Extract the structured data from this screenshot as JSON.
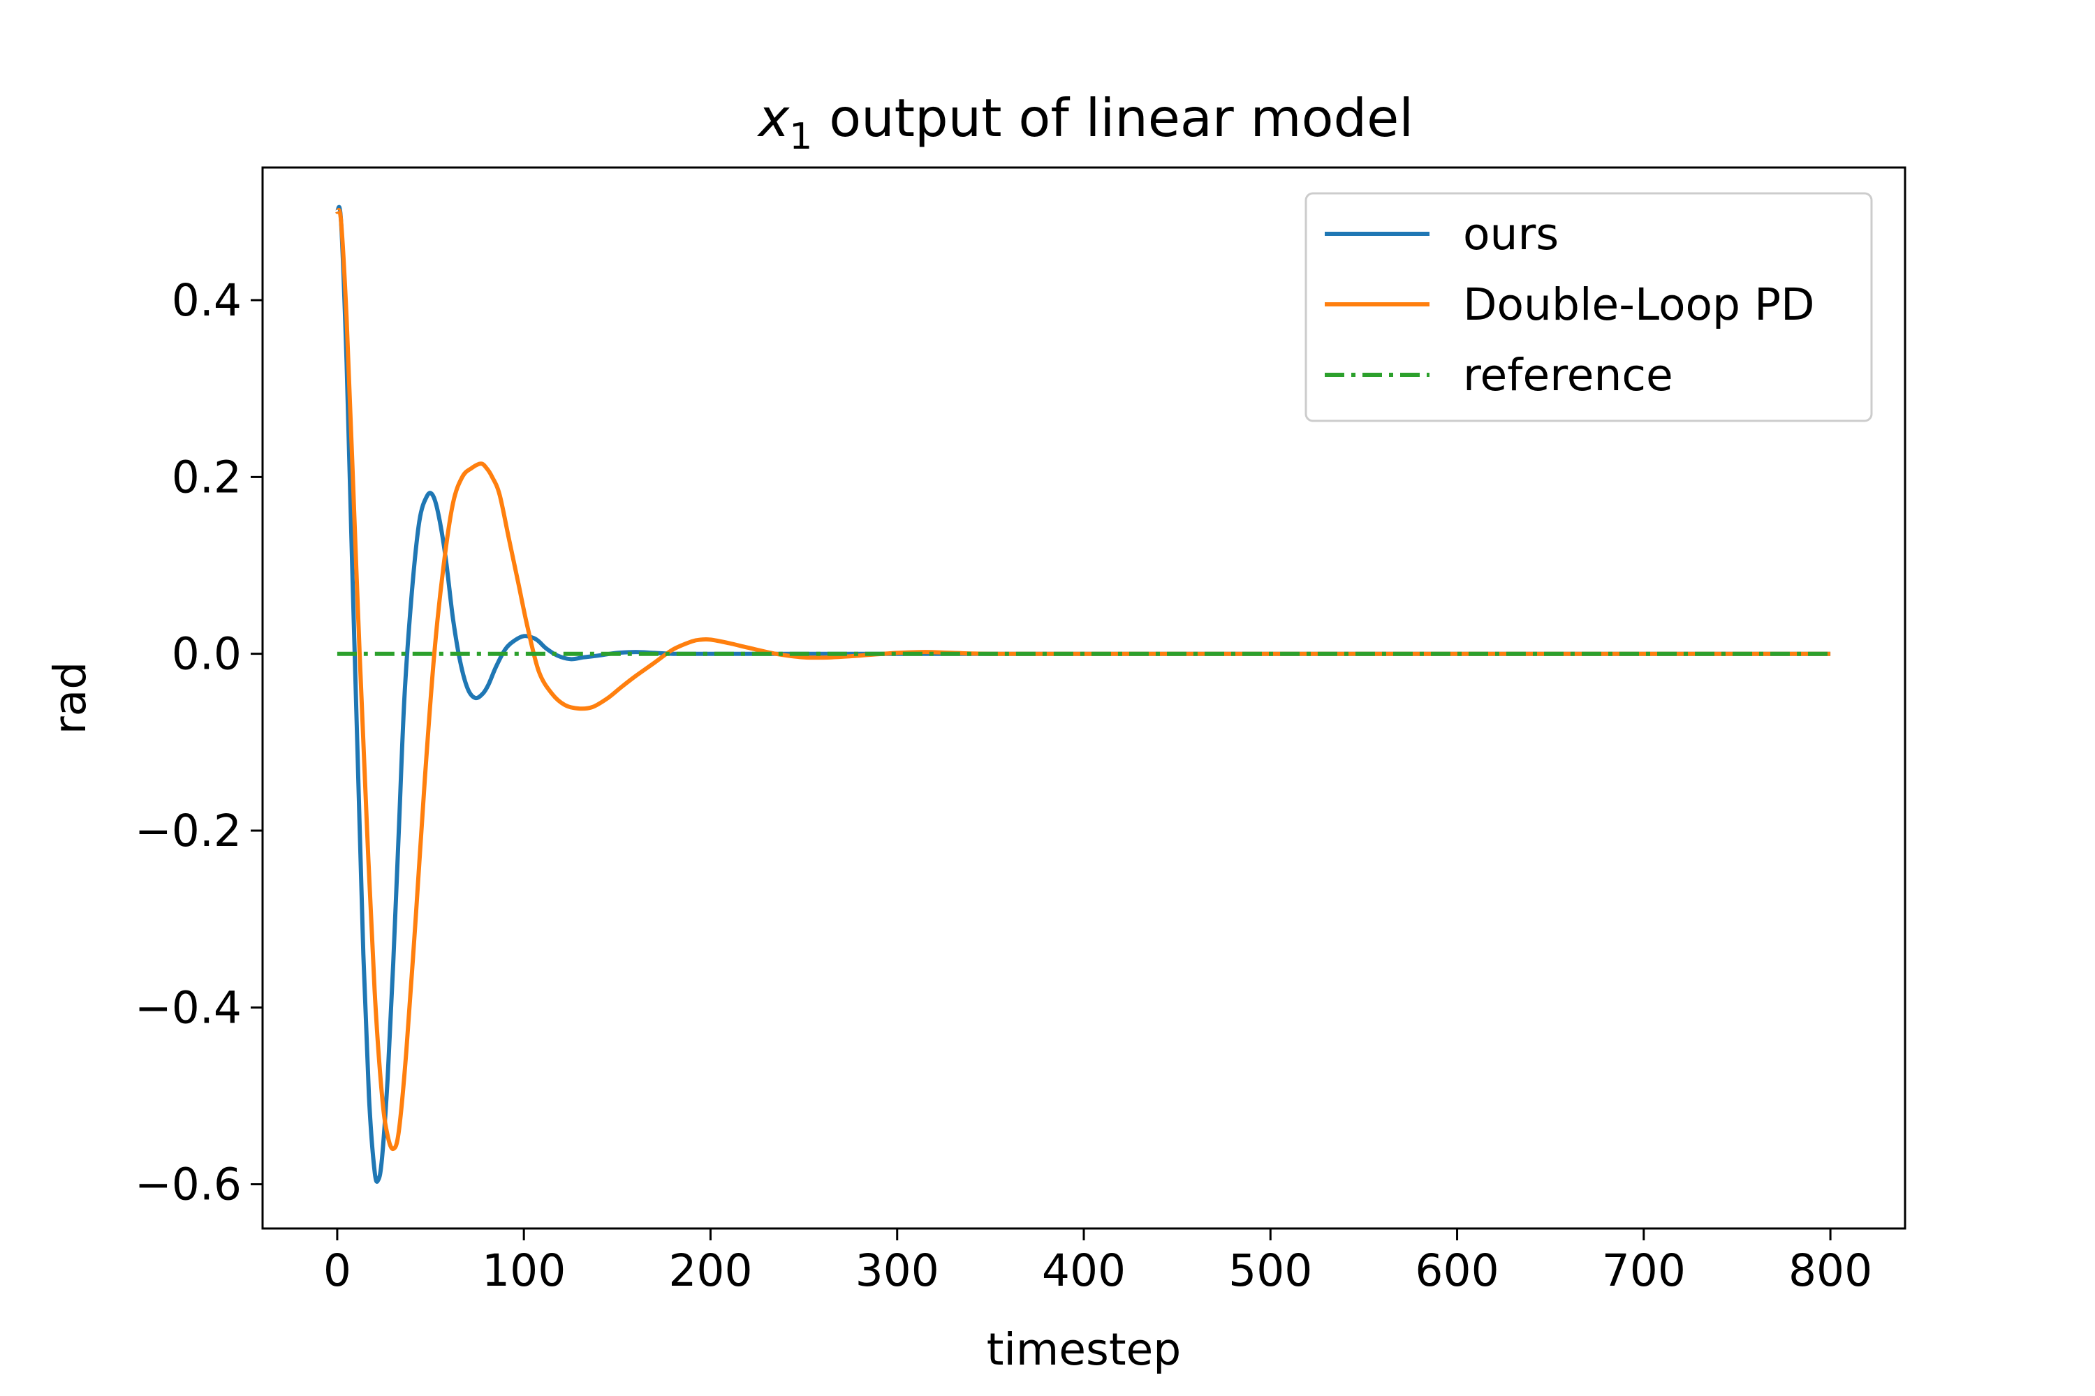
{
  "chart_data": {
    "type": "line",
    "title": "x",
    "title_subscript": "1",
    "title_rest": " output of linear model",
    "xlabel": "timestep",
    "ylabel": "rad",
    "xlim": [
      -40,
      840
    ],
    "ylim": [
      -0.65,
      0.55
    ],
    "xticks": [
      0,
      100,
      200,
      300,
      400,
      500,
      600,
      700,
      800
    ],
    "xtick_labels": [
      "0",
      "100",
      "200",
      "300",
      "400",
      "500",
      "600",
      "700",
      "800"
    ],
    "yticks": [
      0.4,
      0.2,
      0.0,
      -0.2,
      -0.4,
      -0.6
    ],
    "ytick_labels": [
      "0.4",
      "0.2",
      "0.0",
      "−0.2",
      "−0.4",
      "−0.6"
    ],
    "grid": false,
    "legend_position": "upper right",
    "series": [
      {
        "name": "ours",
        "color": "#1f77b4",
        "style": "solid",
        "x": [
          0,
          2,
          5,
          8,
          11,
          14,
          17,
          20,
          22,
          24,
          27,
          30,
          33,
          36,
          40,
          44,
          48,
          51,
          54,
          58,
          62,
          66,
          70,
          74,
          78,
          81,
          85,
          90,
          95,
          100,
          105,
          108,
          112,
          118,
          125,
          132,
          140,
          150,
          160,
          170,
          180,
          200,
          230,
          260,
          300,
          400,
          500,
          600,
          700,
          800
        ],
        "y": [
          0.5,
          0.49,
          0.33,
          0.1,
          -0.12,
          -0.34,
          -0.5,
          -0.585,
          -0.595,
          -0.57,
          -0.48,
          -0.35,
          -0.2,
          -0.05,
          0.07,
          0.15,
          0.178,
          0.18,
          0.16,
          0.11,
          0.04,
          -0.01,
          -0.04,
          -0.05,
          -0.045,
          -0.035,
          -0.015,
          0.005,
          0.015,
          0.02,
          0.018,
          0.014,
          0.006,
          -0.002,
          -0.006,
          -0.004,
          -0.002,
          0.001,
          0.002,
          0.001,
          0.0,
          0.0,
          0.0,
          0.0,
          0.0,
          0.0,
          0.0,
          0.0,
          0.0,
          0.0
        ]
      },
      {
        "name": "Double-Loop PD",
        "color": "#ff7f0e",
        "style": "solid",
        "x": [
          0,
          2,
          5,
          8,
          12,
          16,
          20,
          24,
          27,
          30,
          33,
          37,
          42,
          47,
          52,
          57,
          62,
          67,
          72,
          77,
          80,
          83,
          87,
          92,
          97,
          102,
          108,
          115,
          122,
          130,
          137,
          145,
          152,
          160,
          170,
          180,
          190,
          195,
          200,
          210,
          220,
          235,
          250,
          265,
          280,
          300,
          315,
          330,
          350,
          400,
          500,
          600,
          700,
          800
        ],
        "y": [
          0.5,
          0.49,
          0.38,
          0.22,
          0.0,
          -0.2,
          -0.38,
          -0.5,
          -0.545,
          -0.56,
          -0.54,
          -0.45,
          -0.3,
          -0.14,
          0.0,
          0.1,
          0.17,
          0.2,
          0.21,
          0.215,
          0.21,
          0.2,
          0.18,
          0.13,
          0.08,
          0.03,
          -0.02,
          -0.045,
          -0.058,
          -0.062,
          -0.06,
          -0.05,
          -0.038,
          -0.025,
          -0.01,
          0.005,
          0.014,
          0.016,
          0.016,
          0.012,
          0.007,
          0.0,
          -0.004,
          -0.004,
          -0.002,
          0.001,
          0.002,
          0.001,
          0.0,
          0.0,
          0.0,
          0.0,
          0.0,
          0.0
        ]
      },
      {
        "name": "reference",
        "color": "#2ca02c",
        "style": "dashdot",
        "x": [
          0,
          800
        ],
        "y": [
          0.0,
          0.0
        ]
      }
    ]
  }
}
